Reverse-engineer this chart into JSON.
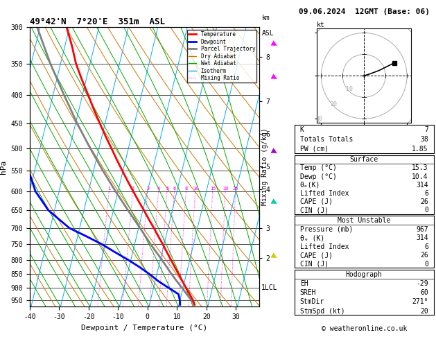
{
  "title_left": "49°42'N  7°20'E  351m  ASL",
  "title_right": "09.06.2024  12GMT (Base: 06)",
  "xlabel": "Dewpoint / Temperature (°C)",
  "ylabel_left": "hPa",
  "pressure_levels": [
    300,
    350,
    400,
    450,
    500,
    550,
    600,
    650,
    700,
    750,
    800,
    850,
    900,
    950
  ],
  "xlim": [
    -40,
    38
  ],
  "pmin": 300,
  "pmax": 975,
  "skew_factor": 45,
  "temp_profile": {
    "pressure": [
      967,
      950,
      925,
      900,
      875,
      850,
      825,
      800,
      775,
      750,
      725,
      700,
      675,
      650,
      625,
      600,
      575,
      550,
      525,
      500,
      475,
      450,
      425,
      400,
      375,
      350,
      325,
      300
    ],
    "temp": [
      15.3,
      14.5,
      12.8,
      11.0,
      9.2,
      7.4,
      5.5,
      3.6,
      1.6,
      -0.4,
      -2.6,
      -4.8,
      -7.2,
      -9.6,
      -12.2,
      -14.8,
      -17.5,
      -20.2,
      -23.0,
      -25.8,
      -28.8,
      -31.8,
      -34.9,
      -38.0,
      -41.4,
      -44.8,
      -47.6,
      -51.0
    ],
    "color": "#ff0000",
    "linewidth": 2.0
  },
  "dewpoint_profile": {
    "pressure": [
      967,
      950,
      925,
      900,
      875,
      850,
      825,
      800,
      775,
      750,
      725,
      700,
      650,
      600,
      550,
      500,
      450,
      400,
      350,
      300
    ],
    "temp": [
      10.4,
      10.0,
      9.0,
      5.0,
      1.0,
      -2.5,
      -6.5,
      -11.0,
      -16.0,
      -21.0,
      -27.0,
      -33.5,
      -42.0,
      -48.0,
      -52.0,
      -55.0,
      -57.5,
      -60.0,
      -63.0,
      -66.0
    ],
    "color": "#0000ff",
    "linewidth": 2.0
  },
  "parcel_profile": {
    "pressure": [
      967,
      950,
      925,
      900,
      875,
      850,
      800,
      750,
      700,
      650,
      600,
      550,
      500,
      450,
      400,
      350,
      300
    ],
    "temp": [
      15.3,
      14.0,
      11.8,
      9.6,
      7.3,
      5.0,
      0.5,
      -4.5,
      -9.5,
      -15.0,
      -20.8,
      -26.8,
      -33.0,
      -39.5,
      -46.2,
      -53.5,
      -61.0
    ],
    "color": "#808080",
    "linewidth": 2.0
  },
  "isotherm_color": "#00aaff",
  "dry_adiabat_color": "#cc7700",
  "wet_adiabat_color": "#00aa00",
  "mixing_ratio_color": "#ff00ff",
  "mixing_ratio_values": [
    1,
    2,
    3,
    4,
    5,
    6,
    8,
    10,
    15,
    20,
    25
  ],
  "background_color": "#ffffff",
  "info_box": {
    "K": 7,
    "Totals_Totals": 38,
    "PW_cm": 1.85,
    "Surface_Temp": 15.3,
    "Surface_Dewp": 10.4,
    "Surface_theta_e": 314,
    "Surface_LI": 6,
    "Surface_CAPE": 26,
    "Surface_CIN": 0,
    "MU_Pressure": 967,
    "MU_theta_e": 314,
    "MU_LI": 6,
    "MU_CAPE": 26,
    "MU_CIN": 0,
    "EH": -29,
    "SREH": 60,
    "StmDir": "271°",
    "StmSpd_kt": 20
  },
  "hodo_points": [
    [
      0.0,
      0.0
    ],
    [
      3.0,
      1.0
    ],
    [
      7.0,
      2.5
    ],
    [
      14.0,
      6.0
    ]
  ],
  "hodo_circles": [
    10,
    20,
    30,
    40
  ],
  "hodo_circle_labels": [
    "10",
    "20",
    "30"
  ],
  "legend_items": [
    {
      "label": "Temperature",
      "color": "#ff0000",
      "lw": 2,
      "ls": "solid"
    },
    {
      "label": "Dewpoint",
      "color": "#0000ff",
      "lw": 2,
      "ls": "solid"
    },
    {
      "label": "Parcel Trajectory",
      "color": "#808080",
      "lw": 2,
      "ls": "solid"
    },
    {
      "label": "Dry Adiabat",
      "color": "#cc7700",
      "lw": 1,
      "ls": "solid"
    },
    {
      "label": "Wet Adiabat",
      "color": "#00aa00",
      "lw": 1,
      "ls": "solid"
    },
    {
      "label": "Isotherm",
      "color": "#00aaff",
      "lw": 1,
      "ls": "solid"
    },
    {
      "label": "Mixing Ratio",
      "color": "#ff00ff",
      "lw": 0.8,
      "ls": "dotted"
    }
  ],
  "copyright": "© weatheronline.co.uk",
  "km_ticks": {
    "8": 340,
    "7": 410,
    "6": 470,
    "5": 540,
    "4": 595,
    "3": 700,
    "2": 795
  },
  "lcl_pressure": 900
}
